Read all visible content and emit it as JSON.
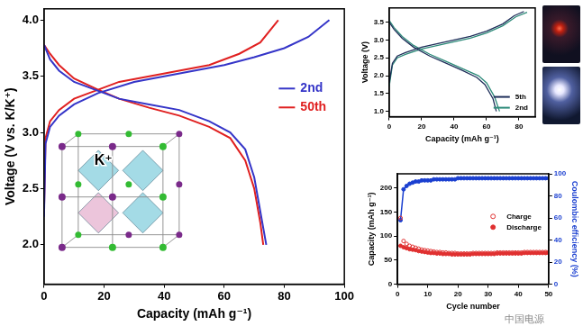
{
  "chart_data": [
    {
      "type": "line",
      "xlabel": "Capacity (mAh g⁻¹)",
      "ylabel": "Voltage (V vs. K/K⁺)",
      "xlim": [
        0,
        100
      ],
      "xticks": [
        0,
        20,
        40,
        60,
        80,
        100
      ],
      "ylim": [
        1.65,
        4.1
      ],
      "yticks": [
        {
          "value": 2,
          "label": "2.0"
        },
        {
          "value": 2.5,
          "label": "2.5"
        },
        {
          "value": 3,
          "label": "3.0"
        },
        {
          "value": 3.5,
          "label": "3.5"
        },
        {
          "value": 4,
          "label": "4.0"
        }
      ],
      "grid": false,
      "legend": "upper right",
      "annotations": [
        "K⁺"
      ],
      "series": [
        {
          "name": "2nd",
          "color": "#3535c8",
          "line_style": "solid",
          "x": [
            0,
            0.5,
            2,
            5,
            10,
            18,
            30,
            40,
            50,
            60,
            70,
            80,
            88,
            95,
            null,
            0,
            2,
            5,
            10,
            18,
            25,
            35,
            45,
            55,
            62,
            67,
            70,
            72,
            74
          ],
          "values": [
            2.25,
            2.9,
            3.05,
            3.15,
            3.25,
            3.35,
            3.45,
            3.5,
            3.55,
            3.6,
            3.67,
            3.75,
            3.85,
            4.0,
            null,
            3.78,
            3.65,
            3.55,
            3.45,
            3.37,
            3.3,
            3.25,
            3.2,
            3.1,
            3.0,
            2.85,
            2.6,
            2.3,
            2.0
          ]
        },
        {
          "name": "50th",
          "color": "#e02020",
          "line_style": "solid",
          "x": [
            0,
            0.5,
            2,
            5,
            10,
            18,
            25,
            35,
            45,
            55,
            65,
            72,
            78,
            null,
            0,
            2,
            5,
            10,
            18,
            25,
            35,
            45,
            55,
            62,
            67,
            70,
            72,
            73
          ],
          "values": [
            2.3,
            2.95,
            3.1,
            3.2,
            3.3,
            3.38,
            3.45,
            3.5,
            3.55,
            3.6,
            3.7,
            3.8,
            4.0,
            null,
            3.78,
            3.7,
            3.6,
            3.48,
            3.38,
            3.3,
            3.22,
            3.15,
            3.05,
            2.95,
            2.75,
            2.5,
            2.2,
            2.0
          ]
        }
      ]
    },
    {
      "type": "line",
      "xlabel": "Capacity (mAh g⁻¹)",
      "ylabel": "Voltage (V)",
      "xlim": [
        0,
        90
      ],
      "xticks": [
        0,
        20,
        40,
        60,
        80
      ],
      "ylim": [
        0.85,
        3.9
      ],
      "yticks": [
        {
          "value": 1,
          "label": "1.0"
        },
        {
          "value": 1.5,
          "label": "1.5"
        },
        {
          "value": 2,
          "label": "2.0"
        },
        {
          "value": 2.5,
          "label": "2.5"
        },
        {
          "value": 3,
          "label": "3.0"
        },
        {
          "value": 3.5,
          "label": "3.5"
        }
      ],
      "grid": false,
      "legend": "lower right",
      "series": [
        {
          "name": "5th",
          "color": "#1f2f5a",
          "line_style": "solid",
          "x": [
            0,
            2,
            5,
            10,
            20,
            30,
            40,
            50,
            60,
            70,
            77,
            83,
            null,
            0,
            3,
            8,
            15,
            25,
            35,
            45,
            54,
            59,
            64,
            66
          ],
          "values": [
            1.8,
            2.35,
            2.55,
            2.65,
            2.8,
            2.9,
            3.0,
            3.1,
            3.25,
            3.45,
            3.68,
            3.8,
            null,
            3.5,
            3.3,
            3.05,
            2.8,
            2.55,
            2.35,
            2.15,
            1.95,
            1.75,
            1.35,
            1.0
          ]
        },
        {
          "name": "2nd",
          "color": "#2e8b7a",
          "line_style": "solid",
          "x": [
            0,
            2,
            5,
            10,
            20,
            30,
            40,
            50,
            60,
            70,
            78,
            85,
            null,
            0,
            3,
            8,
            15,
            25,
            35,
            45,
            55,
            60,
            65,
            68
          ],
          "values": [
            1.7,
            2.3,
            2.5,
            2.6,
            2.75,
            2.85,
            2.95,
            3.05,
            3.2,
            3.4,
            3.65,
            3.78,
            null,
            3.55,
            3.35,
            3.1,
            2.85,
            2.6,
            2.4,
            2.2,
            2.0,
            1.8,
            1.4,
            1.0
          ]
        }
      ]
    },
    {
      "type": "scatter",
      "xlabel": "Cycle number",
      "ylabel": "Capacity (mAh g⁻¹)",
      "y2label": "Coulombic efficiency (%)",
      "xlim": [
        0,
        50
      ],
      "xticks": [
        0,
        10,
        20,
        30,
        40,
        50
      ],
      "ylim": [
        0,
        230
      ],
      "yticks": [
        0,
        50,
        100,
        150,
        200
      ],
      "y2lim": [
        0,
        100
      ],
      "y2ticks": [
        0,
        20,
        40,
        60,
        80,
        100
      ],
      "grid": false,
      "legend": "right",
      "x": [
        1,
        2,
        3,
        4,
        5,
        6,
        7,
        8,
        9,
        10,
        11,
        12,
        13,
        14,
        15,
        16,
        17,
        18,
        19,
        20,
        21,
        22,
        23,
        24,
        25,
        26,
        27,
        28,
        29,
        30,
        31,
        32,
        33,
        34,
        35,
        36,
        37,
        38,
        39,
        40,
        41,
        42,
        43,
        44,
        45,
        46,
        47,
        48,
        49,
        50
      ],
      "series": [
        {
          "name": "Charge",
          "color": "#e03030",
          "type": "scatter",
          "marker": "open_circle",
          "values": [
            138,
            90,
            84,
            80,
            78,
            76,
            74,
            72,
            71,
            70,
            69,
            68,
            67,
            67,
            66,
            66,
            65,
            65,
            65,
            64,
            64,
            64,
            64,
            64,
            65,
            65,
            65,
            65,
            65,
            65,
            65,
            65,
            66,
            66,
            66,
            66,
            66,
            66,
            66,
            66,
            66,
            67,
            67,
            67,
            67,
            67,
            67,
            67,
            67,
            67
          ]
        },
        {
          "name": "Discharge",
          "color": "#e03030",
          "type": "scatter",
          "marker": "circle",
          "values": [
            80,
            77,
            75,
            73,
            72,
            71,
            69,
            68,
            67,
            66,
            65,
            65,
            64,
            64,
            63,
            63,
            63,
            62,
            62,
            62,
            62,
            62,
            62,
            62,
            63,
            63,
            63,
            63,
            63,
            63,
            63,
            63,
            64,
            64,
            64,
            64,
            64,
            64,
            64,
            64,
            64,
            65,
            65,
            65,
            65,
            65,
            65,
            65,
            65,
            65
          ]
        },
        {
          "color": "#1a3fd0",
          "type": "line",
          "marker": "circle",
          "line_style": "solid",
          "axis": "y2",
          "values": [
            58,
            86,
            89,
            91,
            92,
            93,
            93,
            94,
            94,
            94,
            94,
            95,
            95,
            95,
            95,
            95,
            95,
            95,
            95,
            96,
            96,
            96,
            96,
            96,
            96,
            96,
            96,
            96,
            96,
            96,
            96,
            96,
            96,
            96,
            96,
            96,
            96,
            96,
            96,
            96,
            96,
            96,
            96,
            96,
            96,
            96,
            96,
            96,
            96,
            96
          ]
        }
      ]
    }
  ],
  "watermark": "中国电源"
}
